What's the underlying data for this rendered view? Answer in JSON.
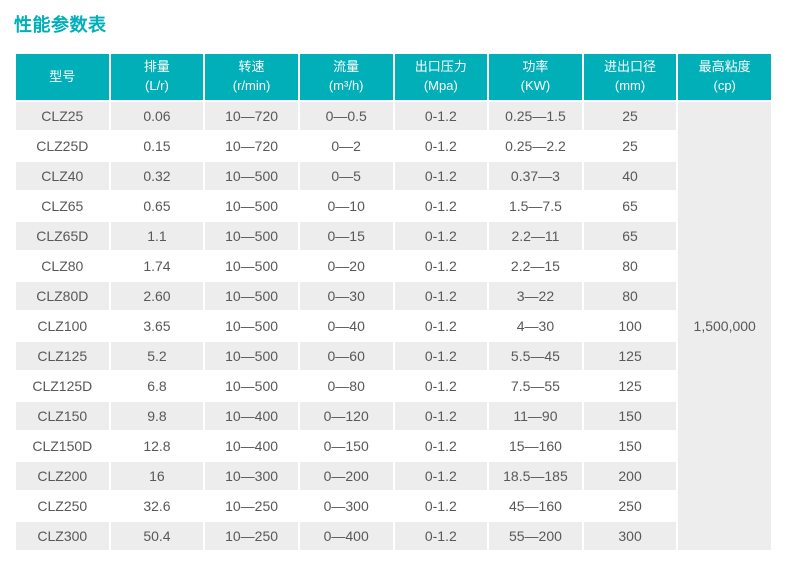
{
  "page": {
    "title": "性能参数表"
  },
  "colors": {
    "accent_teal": "#00afb8",
    "row_alt_bg": "#ededed",
    "row_bg": "#ffffff",
    "body_text": "#58585b",
    "header_text": "#ffffff"
  },
  "table": {
    "columns": [
      {
        "key": "model",
        "label": "型号",
        "unit": ""
      },
      {
        "key": "displacement",
        "label": "排量",
        "unit": "(L/r)"
      },
      {
        "key": "speed",
        "label": "转速",
        "unit": "(r/min)"
      },
      {
        "key": "flow",
        "label": "流量",
        "unit": "(m³/h)"
      },
      {
        "key": "pressure",
        "label": "出口压力",
        "unit": "(Mpa)"
      },
      {
        "key": "power",
        "label": "功率",
        "unit": "(KW)"
      },
      {
        "key": "diameter",
        "label": "进出口径",
        "unit": "(mm)"
      },
      {
        "key": "max-viscosity",
        "label": "最高粘度",
        "unit": "(cp)"
      }
    ],
    "max_viscosity": "1,500,000",
    "rows": [
      [
        "CLZ25",
        "0.06",
        "10—720",
        "0—0.5",
        "0-1.2",
        "0.25—1.5",
        "25"
      ],
      [
        "CLZ25D",
        "0.15",
        "10—720",
        "0—2",
        "0-1.2",
        "0.25—2.2",
        "25"
      ],
      [
        "CLZ40",
        "0.32",
        "10—500",
        "0—5",
        "0-1.2",
        "0.37—3",
        "40"
      ],
      [
        "CLZ65",
        "0.65",
        "10—500",
        "0—10",
        "0-1.2",
        "1.5—7.5",
        "65"
      ],
      [
        "CLZ65D",
        "1.1",
        "10—500",
        "0—15",
        "0-1.2",
        "2.2—11",
        "65"
      ],
      [
        "CLZ80",
        "1.74",
        "10—500",
        "0—20",
        "0-1.2",
        "2.2—15",
        "80"
      ],
      [
        "CLZ80D",
        "2.60",
        "10—500",
        "0—30",
        "0-1.2",
        "3—22",
        "80"
      ],
      [
        "CLZ100",
        "3.65",
        "10—500",
        "0—40",
        "0-1.2",
        "4—30",
        "100"
      ],
      [
        "CLZ125",
        "5.2",
        "10—500",
        "0—60",
        "0-1.2",
        "5.5—45",
        "125"
      ],
      [
        "CLZ125D",
        "6.8",
        "10—500",
        "0—80",
        "0-1.2",
        "7.5—55",
        "125"
      ],
      [
        "CLZ150",
        "9.8",
        "10—400",
        "0—120",
        "0-1.2",
        "11—90",
        "150"
      ],
      [
        "CLZ150D",
        "12.8",
        "10—400",
        "0—150",
        "0-1.2",
        "15—160",
        "150"
      ],
      [
        "CLZ200",
        "16",
        "10—300",
        "0—200",
        "0-1.2",
        "18.5—185",
        "200"
      ],
      [
        "CLZ250",
        "32.6",
        "10—250",
        "0—300",
        "0-1.2",
        "45—160",
        "250"
      ],
      [
        "CLZ300",
        "50.4",
        "10—250",
        "0—400",
        "0-1.2",
        "55—200",
        "300"
      ]
    ]
  }
}
